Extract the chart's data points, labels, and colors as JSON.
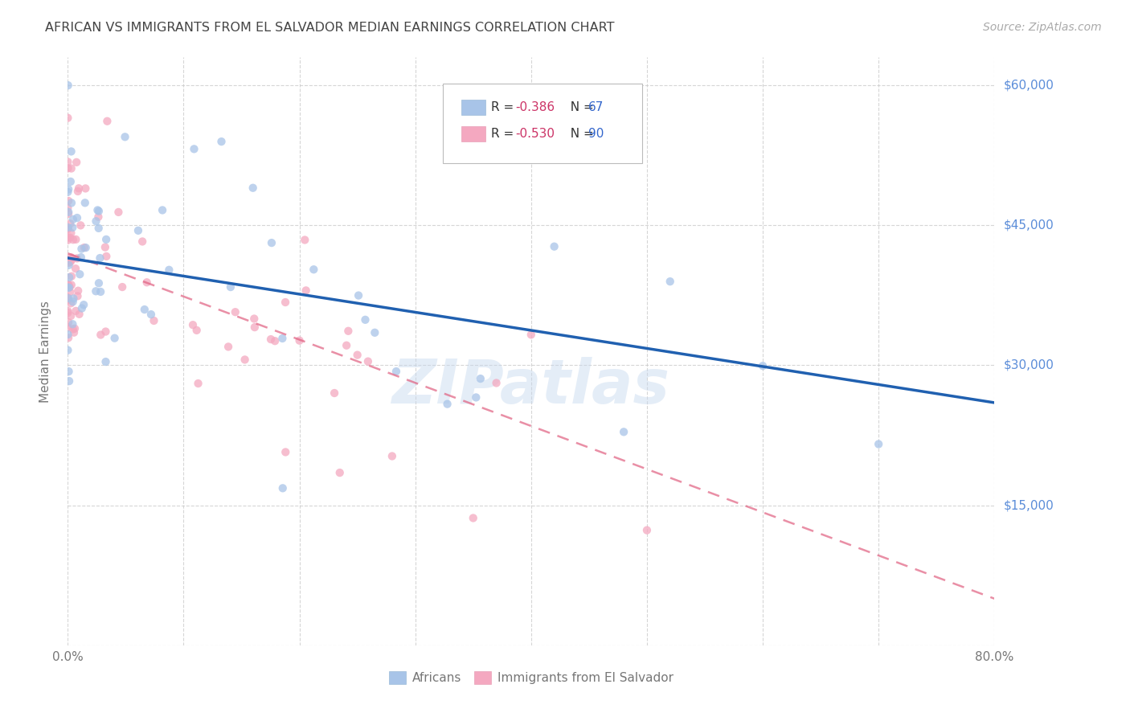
{
  "title": "AFRICAN VS IMMIGRANTS FROM EL SALVADOR MEDIAN EARNINGS CORRELATION CHART",
  "source": "Source: ZipAtlas.com",
  "ylabel": "Median Earnings",
  "y_ticks": [
    0,
    15000,
    30000,
    45000,
    60000
  ],
  "y_tick_labels": [
    "",
    "$15,000",
    "$30,000",
    "$45,000",
    "$60,000"
  ],
  "african_R": -0.386,
  "african_N": 67,
  "salvador_R": -0.53,
  "salvador_N": 90,
  "african_color": "#a8c4e8",
  "salvador_color": "#f4a8c0",
  "african_line_color": "#2060b0",
  "salvador_line_color": "#e06080",
  "watermark": "ZIPatlas",
  "background_color": "#ffffff",
  "grid_color": "#cccccc",
  "scatter_alpha": 0.75,
  "scatter_size": 55,
  "tick_label_color": "#5b8dd9",
  "axis_label_color": "#777777",
  "title_color": "#444444",
  "source_color": "#aaaaaa",
  "legend_text_color": "#333333",
  "legend_value_color": "#cc3366",
  "legend_n_color": "#3366cc"
}
